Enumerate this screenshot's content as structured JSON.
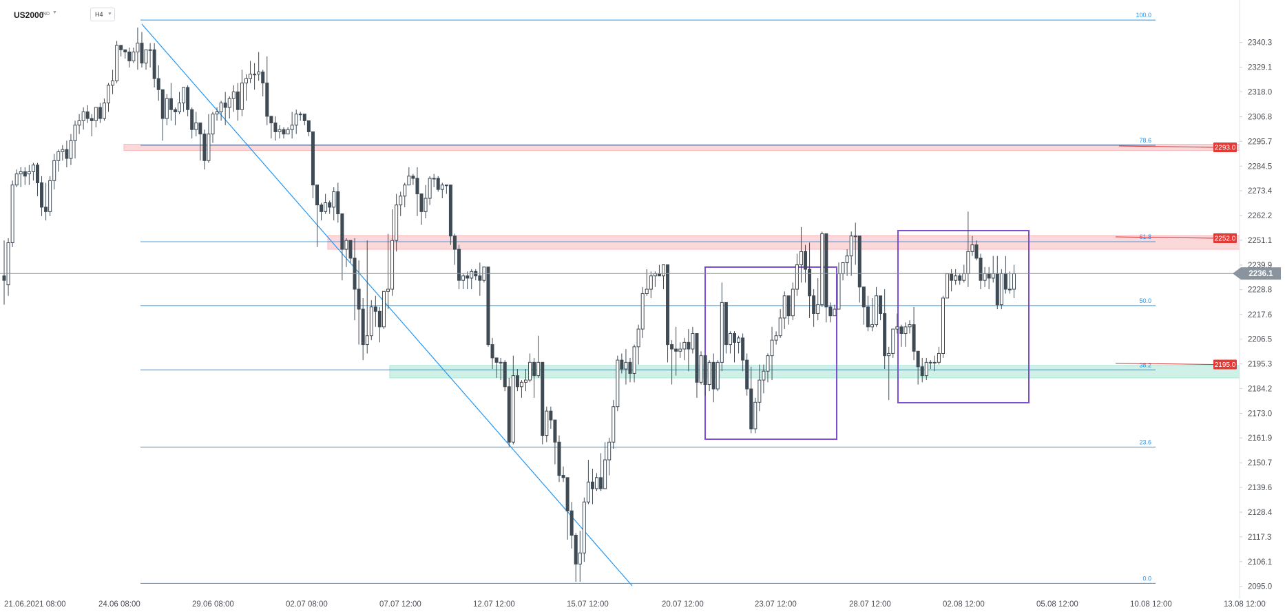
{
  "header": {
    "symbol": "US2000",
    "badge": "IND",
    "timeframe": "H4"
  },
  "chart_data": {
    "type": "candlestick",
    "y_ticks": [
      "2340.3",
      "2329.1",
      "2318.0",
      "2306.8",
      "2295.7",
      "2284.5",
      "2273.4",
      "2262.2",
      "2251.1",
      "2239.9",
      "2228.8",
      "2217.6",
      "2206.5",
      "2195.3",
      "2184.2",
      "2173.0",
      "2161.9",
      "2150.7",
      "2139.6",
      "2128.4",
      "2117.3",
      "2106.1",
      "2095.0"
    ],
    "x_ticks": [
      "21.06.2021  08:00",
      "24.06  08:00",
      "29.06  08:00",
      "02.07  08:00",
      "07.07  12:00",
      "12.07  12:00",
      "15.07  12:00",
      "20.07  12:00",
      "23.07  12:00",
      "28.07  12:00",
      "02.08  12:00",
      "05.08  12:00",
      "10.08  12:00",
      "13.08  12:00"
    ],
    "ylim": [
      2093.0,
      2352.0
    ],
    "fib_levels": [
      {
        "label": "100.0",
        "price": 2350.4
      },
      {
        "label": "78.6",
        "price": 2293.9
      },
      {
        "label": "61.8",
        "price": 2250.4
      },
      {
        "label": "50.0",
        "price": 2221.6
      },
      {
        "label": "38.2",
        "price": 2192.6
      },
      {
        "label": "23.6",
        "price": 2157.8
      },
      {
        "label": "0.0",
        "price": 2096.3
      }
    ],
    "current_price": {
      "label": "2236.1",
      "value": 2236.1
    },
    "price_tags": [
      {
        "label": "2293.0",
        "value": 2293.0
      },
      {
        "label": "2252.0",
        "value": 2252.0
      },
      {
        "label": "2195.0",
        "value": 2195.0
      }
    ],
    "zones": [
      {
        "from": 2291.6,
        "to": 2294.4,
        "color": "#f8b8bc"
      },
      {
        "from": 2247.0,
        "to": 2253.1,
        "color": "#f8b8bc"
      },
      {
        "from": 2189.0,
        "to": 2194.6,
        "color": "#a8e6d4"
      }
    ],
    "candles": [
      [
        2235,
        2233,
        2222,
        2251
      ],
      [
        2231,
        2250,
        2226,
        2252
      ],
      [
        2250,
        2276,
        2248,
        2278
      ],
      [
        2276,
        2281,
        2275,
        2283
      ],
      [
        2281,
        2282,
        2275,
        2284
      ],
      [
        2282,
        2280,
        2276,
        2284
      ],
      [
        2281,
        2282,
        2276,
        2285
      ],
      [
        2282,
        2285,
        2278,
        2286
      ],
      [
        2285,
        2277,
        2271,
        2286
      ],
      [
        2277,
        2266,
        2262,
        2280
      ],
      [
        2266,
        2264,
        2260,
        2277
      ],
      [
        2264,
        2278,
        2262,
        2280
      ],
      [
        2278,
        2287,
        2274,
        2290
      ],
      [
        2287,
        2291,
        2282,
        2292
      ],
      [
        2291,
        2292,
        2287,
        2294
      ],
      [
        2292,
        2288,
        2284,
        2296
      ],
      [
        2288,
        2296,
        2285,
        2299
      ],
      [
        2296,
        2303,
        2288,
        2305
      ],
      [
        2303,
        2305,
        2299,
        2308
      ],
      [
        2305,
        2309,
        2301,
        2311
      ],
      [
        2309,
        2306,
        2304,
        2312
      ],
      [
        2306,
        2305,
        2298,
        2308
      ],
      [
        2305,
        2311,
        2302,
        2311
      ],
      [
        2311,
        2306,
        2304,
        2313
      ],
      [
        2306,
        2313,
        2305,
        2315
      ],
      [
        2313,
        2321,
        2309,
        2322
      ],
      [
        2321,
        2323,
        2317,
        2328
      ],
      [
        2323,
        2339,
        2322,
        2341
      ],
      [
        2339,
        2337,
        2334,
        2339
      ],
      [
        2337,
        2336,
        2333,
        2337
      ],
      [
        2336,
        2332,
        2329,
        2338
      ],
      [
        2332,
        2336,
        2331,
        2338
      ],
      [
        2336,
        2340,
        2328,
        2347
      ],
      [
        2340,
        2331,
        2329,
        2345
      ],
      [
        2331,
        2337,
        2328,
        2337
      ],
      [
        2337,
        2337,
        2329,
        2340
      ],
      [
        2337,
        2324,
        2320,
        2340
      ],
      [
        2324,
        2319,
        2314,
        2330
      ],
      [
        2319,
        2306,
        2296,
        2319
      ],
      [
        2306,
        2315,
        2303,
        2317
      ],
      [
        2315,
        2310,
        2305,
        2322
      ],
      [
        2310,
        2309,
        2303,
        2311
      ],
      [
        2309,
        2313,
        2308,
        2318
      ],
      [
        2313,
        2320,
        2309,
        2320
      ],
      [
        2320,
        2310,
        2307,
        2321
      ],
      [
        2310,
        2301,
        2297,
        2311
      ],
      [
        2301,
        2304,
        2298,
        2309
      ],
      [
        2304,
        2299,
        2287,
        2304
      ],
      [
        2299,
        2287,
        2283,
        2301
      ],
      [
        2287,
        2299,
        2286,
        2308
      ],
      [
        2299,
        2308,
        2295,
        2309
      ],
      [
        2308,
        2309,
        2305,
        2311
      ],
      [
        2309,
        2313,
        2305,
        2314
      ],
      [
        2313,
        2311,
        2303,
        2318
      ],
      [
        2311,
        2315,
        2306,
        2316
      ],
      [
        2315,
        2318,
        2309,
        2321
      ],
      [
        2318,
        2310,
        2305,
        2322
      ],
      [
        2310,
        2322,
        2307,
        2328
      ],
      [
        2322,
        2324,
        2314,
        2326
      ],
      [
        2324,
        2326,
        2322,
        2332
      ],
      [
        2326,
        2326,
        2319,
        2331
      ],
      [
        2326,
        2327,
        2323,
        2336
      ],
      [
        2327,
        2322,
        2316,
        2328
      ],
      [
        2322,
        2307,
        2303,
        2334
      ],
      [
        2307,
        2304,
        2297,
        2307
      ],
      [
        2304,
        2300,
        2296,
        2307
      ],
      [
        2300,
        2301,
        2297,
        2303
      ],
      [
        2301,
        2299,
        2297,
        2302
      ],
      [
        2299,
        2301,
        2299,
        2302
      ],
      [
        2301,
        2303,
        2297,
        2309
      ],
      [
        2303,
        2308,
        2299,
        2310
      ],
      [
        2308,
        2308,
        2305,
        2309
      ],
      [
        2308,
        2305,
        2303,
        2308
      ],
      [
        2305,
        2300,
        2298,
        2305
      ],
      [
        2300,
        2276,
        2270,
        2300
      ],
      [
        2276,
        2267,
        2248,
        2276
      ],
      [
        2267,
        2264,
        2260,
        2268
      ],
      [
        2264,
        2268,
        2263,
        2272
      ],
      [
        2268,
        2266,
        2263,
        2269
      ],
      [
        2266,
        2273,
        2260,
        2275
      ],
      [
        2273,
        2263,
        2259,
        2277
      ],
      [
        2263,
        2247,
        2233,
        2263
      ],
      [
        2247,
        2251,
        2239,
        2252
      ],
      [
        2251,
        2243,
        2241,
        2251
      ],
      [
        2243,
        2229,
        2215,
        2252
      ],
      [
        2229,
        2220,
        2204,
        2242
      ],
      [
        2220,
        2204,
        2197,
        2225
      ],
      [
        2204,
        2208,
        2200,
        2251
      ],
      [
        2208,
        2221,
        2206,
        2224
      ],
      [
        2221,
        2219,
        2212,
        2226
      ],
      [
        2219,
        2212,
        2205,
        2221
      ],
      [
        2212,
        2228,
        2211,
        2228
      ],
      [
        2228,
        2229,
        2220,
        2254
      ],
      [
        2229,
        2251,
        2226,
        2265
      ],
      [
        2251,
        2267,
        2246,
        2272
      ],
      [
        2267,
        2271,
        2262,
        2273
      ],
      [
        2271,
        2276,
        2266,
        2277
      ],
      [
        2276,
        2280,
        2276,
        2284
      ],
      [
        2280,
        2279,
        2276,
        2281
      ],
      [
        2279,
        2272,
        2262,
        2284
      ],
      [
        2272,
        2264,
        2258,
        2272
      ],
      [
        2264,
        2270,
        2261,
        2276
      ],
      [
        2270,
        2279,
        2267,
        2280
      ],
      [
        2279,
        2279,
        2275,
        2281
      ],
      [
        2279,
        2274,
        2273,
        2280
      ],
      [
        2274,
        2276,
        2270,
        2277
      ],
      [
        2276,
        2276,
        2272,
        2276
      ],
      [
        2276,
        2253,
        2249,
        2276
      ],
      [
        2253,
        2247,
        2240,
        2254
      ],
      [
        2247,
        2233,
        2229,
        2249
      ],
      [
        2233,
        2235,
        2229,
        2236
      ],
      [
        2235,
        2234,
        2229,
        2237
      ],
      [
        2234,
        2237,
        2229,
        2238
      ],
      [
        2237,
        2235,
        2233,
        2238
      ],
      [
        2235,
        2233,
        2226,
        2241
      ],
      [
        2233,
        2239,
        2232,
        2239
      ],
      [
        2239,
        2204,
        2203,
        2239
      ],
      [
        2204,
        2198,
        2193,
        2207
      ],
      [
        2198,
        2196,
        2189,
        2198
      ],
      [
        2196,
        2196,
        2188,
        2198
      ],
      [
        2196,
        2185,
        2183,
        2197
      ],
      [
        2185,
        2160,
        2158,
        2189
      ],
      [
        2160,
        2190,
        2159,
        2199
      ],
      [
        2190,
        2185,
        2183,
        2193
      ],
      [
        2185,
        2187,
        2180,
        2188
      ],
      [
        2187,
        2188,
        2183,
        2193
      ],
      [
        2188,
        2196,
        2187,
        2200
      ],
      [
        2196,
        2190,
        2180,
        2198
      ],
      [
        2190,
        2196,
        2189,
        2208
      ],
      [
        2196,
        2163,
        2159,
        2196
      ],
      [
        2163,
        2174,
        2160,
        2176
      ],
      [
        2174,
        2170,
        2166,
        2176
      ],
      [
        2170,
        2160,
        2150,
        2170
      ],
      [
        2160,
        2145,
        2142,
        2163
      ],
      [
        2145,
        2144,
        2142,
        2149
      ],
      [
        2144,
        2129,
        2116,
        2144
      ],
      [
        2129,
        2118,
        2112,
        2133
      ],
      [
        2118,
        2105,
        2097,
        2119
      ],
      [
        2105,
        2110,
        2097,
        2120
      ],
      [
        2110,
        2133,
        2106,
        2135
      ],
      [
        2133,
        2142,
        2132,
        2152
      ],
      [
        2142,
        2139,
        2132,
        2148
      ],
      [
        2139,
        2144,
        2138,
        2146
      ],
      [
        2144,
        2139,
        2138,
        2155
      ],
      [
        2139,
        2152,
        2139,
        2160
      ],
      [
        2152,
        2160,
        2145,
        2162
      ],
      [
        2160,
        2176,
        2157,
        2179
      ],
      [
        2176,
        2197,
        2174,
        2199
      ],
      [
        2197,
        2193,
        2191,
        2200
      ],
      [
        2193,
        2196,
        2186,
        2202
      ],
      [
        2196,
        2191,
        2187,
        2198
      ],
      [
        2191,
        2203,
        2187,
        2204
      ],
      [
        2203,
        2211,
        2195,
        2213
      ],
      [
        2211,
        2227,
        2207,
        2230
      ],
      [
        2227,
        2229,
        2226,
        2238
      ],
      [
        2229,
        2235,
        2225,
        2237
      ],
      [
        2235,
        2236,
        2230,
        2237
      ],
      [
        2236,
        2235,
        2235,
        2240
      ],
      [
        2235,
        2240,
        2229,
        2240
      ],
      [
        2240,
        2204,
        2196,
        2240
      ],
      [
        2204,
        2202,
        2186,
        2206
      ],
      [
        2202,
        2201,
        2190,
        2212
      ],
      [
        2201,
        2202,
        2198,
        2205
      ],
      [
        2202,
        2205,
        2197,
        2207
      ],
      [
        2205,
        2202,
        2192,
        2211
      ],
      [
        2202,
        2209,
        2200,
        2212
      ],
      [
        2209,
        2187,
        2180,
        2209
      ],
      [
        2187,
        2199,
        2186,
        2201
      ],
      [
        2199,
        2186,
        2181,
        2199
      ],
      [
        2186,
        2196,
        2183,
        2197
      ],
      [
        2196,
        2184,
        2178,
        2200
      ],
      [
        2184,
        2196,
        2183,
        2197
      ],
      [
        2196,
        2223,
        2192,
        2232
      ],
      [
        2223,
        2204,
        2200,
        2223
      ],
      [
        2204,
        2209,
        2200,
        2210
      ],
      [
        2209,
        2205,
        2196,
        2210
      ],
      [
        2205,
        2207,
        2200,
        2208
      ],
      [
        2207,
        2197,
        2192,
        2209
      ],
      [
        2197,
        2184,
        2181,
        2200
      ],
      [
        2184,
        2166,
        2164,
        2194
      ],
      [
        2166,
        2178,
        2164,
        2180
      ],
      [
        2178,
        2188,
        2174,
        2195
      ],
      [
        2188,
        2192,
        2182,
        2195
      ],
      [
        2192,
        2199,
        2187,
        2200
      ],
      [
        2199,
        2206,
        2188,
        2212
      ],
      [
        2206,
        2208,
        2204,
        2210
      ],
      [
        2208,
        2216,
        2207,
        2220
      ],
      [
        2216,
        2226,
        2211,
        2228
      ],
      [
        2226,
        2217,
        2213,
        2226
      ],
      [
        2217,
        2229,
        2215,
        2232
      ],
      [
        2229,
        2240,
        2226,
        2245
      ],
      [
        2240,
        2246,
        2232,
        2257
      ],
      [
        2246,
        2238,
        2232,
        2249
      ],
      [
        2238,
        2226,
        2216,
        2250
      ],
      [
        2226,
        2218,
        2212,
        2229
      ],
      [
        2218,
        2222,
        2215,
        2234
      ],
      [
        2222,
        2254,
        2221,
        2255
      ],
      [
        2254,
        2221,
        2214,
        2254
      ],
      [
        2221,
        2217,
        2214,
        2223
      ],
      [
        2217,
        2220,
        2217,
        2222
      ],
      [
        2220,
        2236,
        2220,
        2241
      ],
      [
        2236,
        2241,
        2233,
        2241
      ],
      [
        2241,
        2244,
        2235,
        2247
      ],
      [
        2244,
        2253,
        2235,
        2255
      ],
      [
        2253,
        2253,
        2240,
        2259
      ],
      [
        2253,
        2230,
        2223,
        2253
      ],
      [
        2230,
        2221,
        2213,
        2229
      ],
      [
        2221,
        2212,
        2210,
        2226
      ],
      [
        2212,
        2213,
        2210,
        2225
      ],
      [
        2213,
        2226,
        2212,
        2230
      ],
      [
        2226,
        2218,
        2215,
        2226
      ],
      [
        2218,
        2199,
        2193,
        2229
      ],
      [
        2199,
        2200,
        2179,
        2203
      ],
      [
        2200,
        2211,
        2198,
        2211
      ],
      [
        2211,
        2212,
        2209,
        2218
      ],
      [
        2212,
        2209,
        2203,
        2213
      ],
      [
        2209,
        2212,
        2203,
        2214
      ],
      [
        2212,
        2213,
        2209,
        2215
      ],
      [
        2213,
        2201,
        2197,
        2221
      ],
      [
        2201,
        2194,
        2186,
        2201
      ],
      [
        2194,
        2190,
        2187,
        2198
      ],
      [
        2190,
        2196,
        2188,
        2198
      ],
      [
        2196,
        2196,
        2193,
        2197
      ],
      [
        2196,
        2196,
        2192,
        2199
      ],
      [
        2196,
        2200,
        2195,
        2203
      ],
      [
        2200,
        2225,
        2198,
        2226
      ],
      [
        2225,
        2236,
        2225,
        2236
      ],
      [
        2236,
        2233,
        2228,
        2238
      ],
      [
        2233,
        2235,
        2231,
        2238
      ],
      [
        2235,
        2233,
        2231,
        2236
      ],
      [
        2233,
        2236,
        2232,
        2240
      ],
      [
        2236,
        2246,
        2230,
        2264
      ],
      [
        2246,
        2249,
        2244,
        2253
      ],
      [
        2249,
        2243,
        2242,
        2251
      ],
      [
        2243,
        2233,
        2229,
        2245
      ],
      [
        2233,
        2236,
        2230,
        2239
      ],
      [
        2236,
        2234,
        2229,
        2239
      ],
      [
        2234,
        2236,
        2232,
        2244
      ],
      [
        2236,
        2222,
        2220,
        2244
      ],
      [
        2222,
        2236,
        2220,
        2238
      ],
      [
        2236,
        2229,
        2227,
        2244
      ],
      [
        2229,
        2229,
        2227,
        2237
      ],
      [
        2229,
        2236,
        2225,
        2240
      ]
    ]
  }
}
